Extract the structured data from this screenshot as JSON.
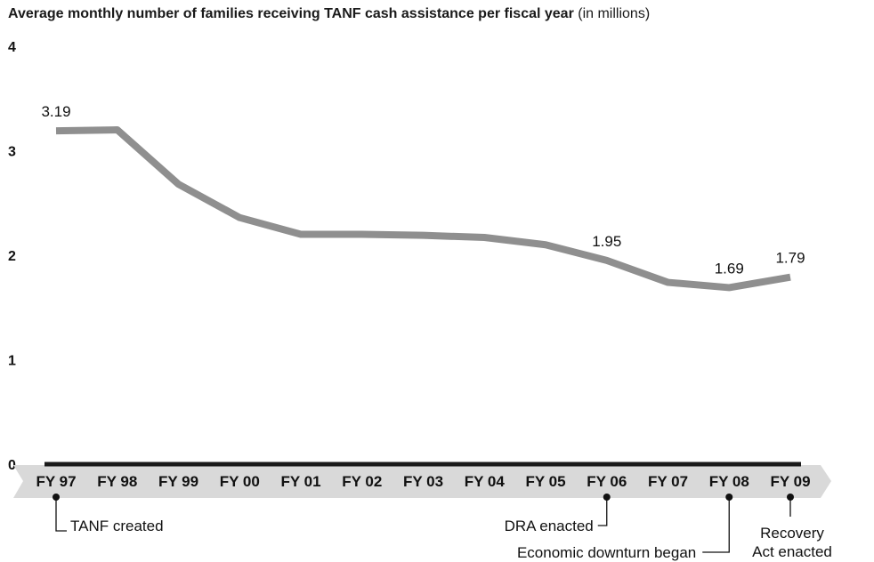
{
  "chart_data": {
    "type": "line",
    "title": "Average monthly number of families receiving TANF cash assistance per fiscal year",
    "subtitle": "(in millions)",
    "categories": [
      "FY 97",
      "FY 98",
      "FY 99",
      "FY 00",
      "FY 01",
      "FY 02",
      "FY 03",
      "FY 04",
      "FY 05",
      "FY 06",
      "FY 07",
      "FY 08",
      "FY 09"
    ],
    "series": [
      {
        "values": [
          3.19,
          3.2,
          2.68,
          2.36,
          2.2,
          2.2,
          2.19,
          2.17,
          2.1,
          1.95,
          1.74,
          1.69,
          1.79
        ]
      }
    ],
    "data_labels": [
      {
        "index": 0,
        "text": "3.19"
      },
      {
        "index": 9,
        "text": "1.95"
      },
      {
        "index": 11,
        "text": "1.69"
      },
      {
        "index": 12,
        "text": "1.79"
      }
    ],
    "y_ticks": [
      "0",
      "1",
      "2",
      "3",
      "4"
    ],
    "ylim": [
      0,
      4
    ],
    "xlabel": "",
    "ylabel": "",
    "grid": false,
    "line_color": "#8f8f8f",
    "axis_color": "#1a1a1a",
    "band_color": "#d9d9d9",
    "annotations": [
      {
        "index": 0,
        "text": [
          "TANF created"
        ],
        "side": "right"
      },
      {
        "index": 9,
        "text": [
          "DRA enacted"
        ],
        "side": "left"
      },
      {
        "index": 11,
        "text": [
          "Economic downturn began"
        ],
        "side": "left"
      },
      {
        "index": 12,
        "text": [
          "Recovery",
          "Act enacted"
        ],
        "side": "below"
      }
    ]
  }
}
